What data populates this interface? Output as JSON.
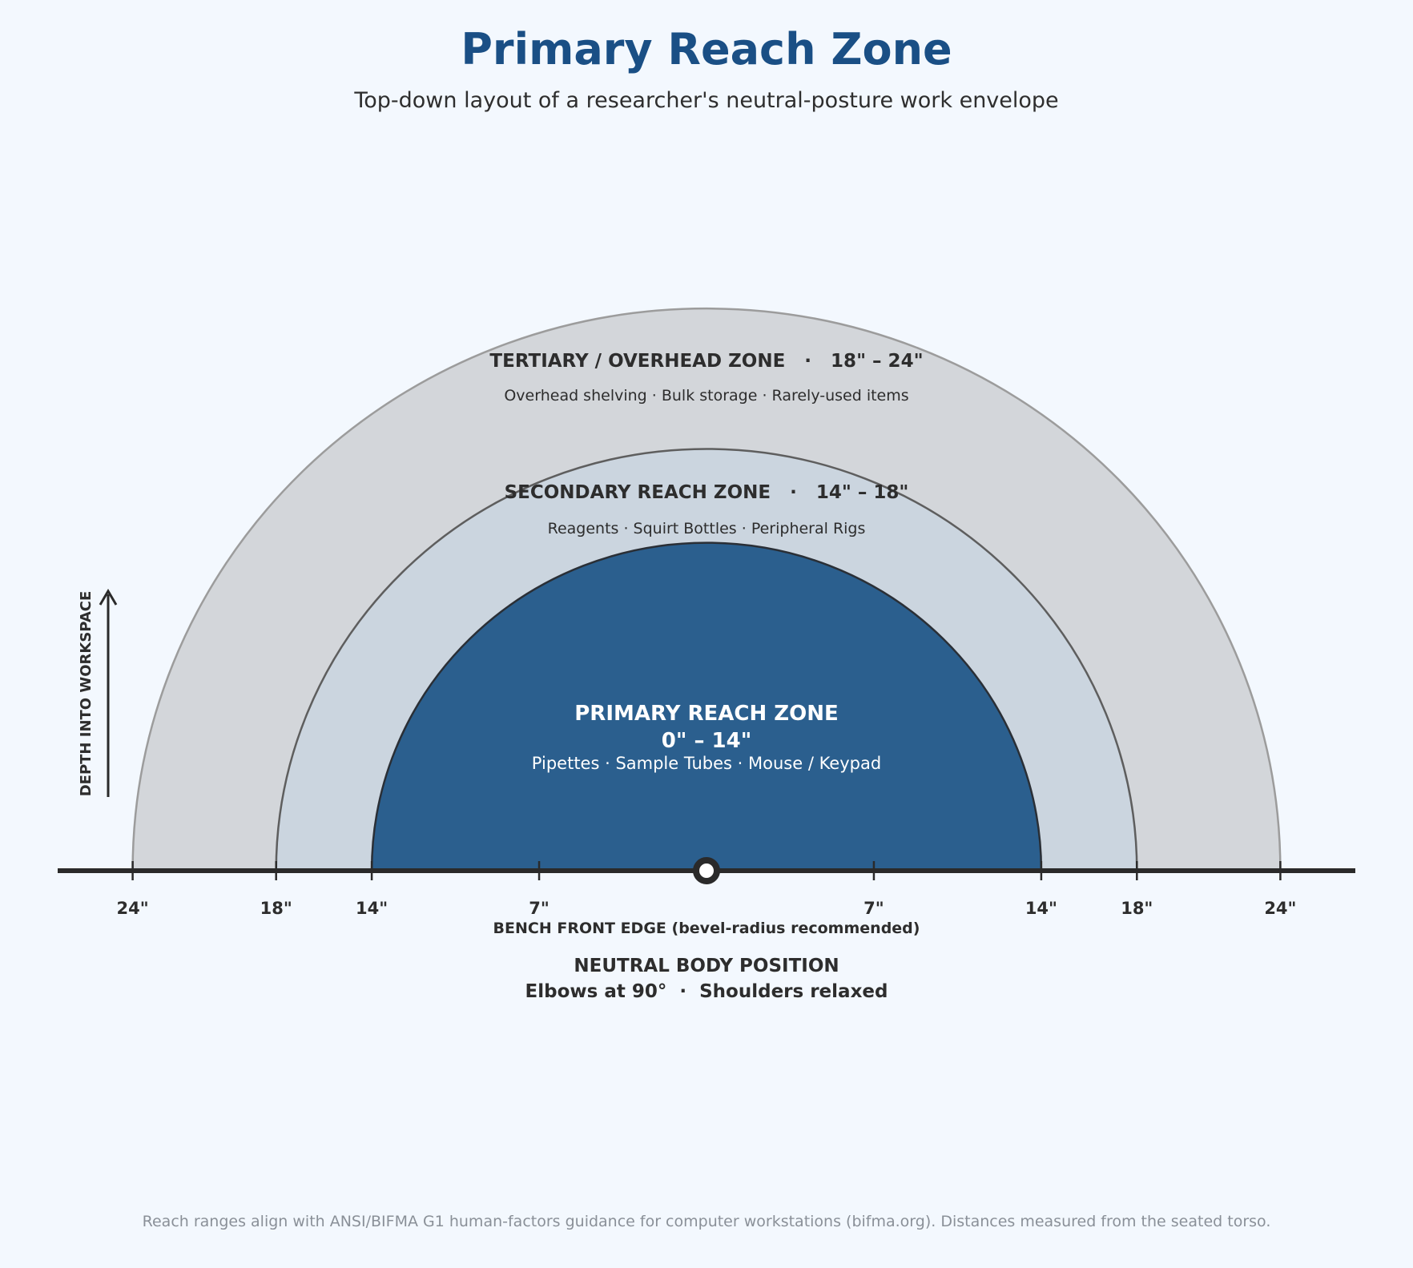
{
  "header": {
    "title": "Primary Reach Zone",
    "subtitle": "Top-down layout of a researcher's neutral-posture work envelope"
  },
  "zones": {
    "tertiary": {
      "title": "TERTIARY / OVERHEAD ZONE   ·   18\" – 24\"",
      "items": "Overhead shelving · Bulk storage · Rarely-used items",
      "min_in": 18,
      "max_in": 24,
      "fill": "#d3d6da",
      "stroke": "#9c9c9c"
    },
    "secondary": {
      "title": "SECONDARY REACH ZONE   ·   14\" – 18\"",
      "items": "Reagents · Squirt Bottles · Peripheral Rigs",
      "min_in": 14,
      "max_in": 18,
      "fill": "#cbd5df",
      "stroke": "#5e5e5e"
    },
    "primary": {
      "title": "PRIMARY REACH ZONE",
      "range": "0\" – 14\"",
      "items": "Pipettes · Sample Tubes · Mouse / Keypad",
      "min_in": 0,
      "max_in": 14,
      "fill": "#2b5f8e",
      "stroke": "#2a2f36"
    }
  },
  "axis": {
    "depth_label": "DEPTH INTO WORKSPACE",
    "bench_label": "BENCH FRONT EDGE (bevel-radius recommended)",
    "ticks": [
      {
        "value": -24,
        "label": "24\""
      },
      {
        "value": -18,
        "label": "18\""
      },
      {
        "value": -14,
        "label": "14\""
      },
      {
        "value": -7,
        "label": "7\""
      },
      {
        "value": 7,
        "label": "7\""
      },
      {
        "value": 14,
        "label": "14\""
      },
      {
        "value": 18,
        "label": "18\""
      },
      {
        "value": 24,
        "label": "24\""
      }
    ]
  },
  "body": {
    "line1": "NEUTRAL BODY POSITION",
    "line2": "Elbows at 90°  ·  Shoulders relaxed"
  },
  "footer": {
    "note": "Reach ranges align with ANSI/BIFMA G1 human-factors guidance for computer workstations (bifma.org). Distances measured from the seated torso."
  },
  "colors": {
    "title": "#1a4f85",
    "background": "#f3f8fe",
    "axis": "#2a2a2a"
  }
}
